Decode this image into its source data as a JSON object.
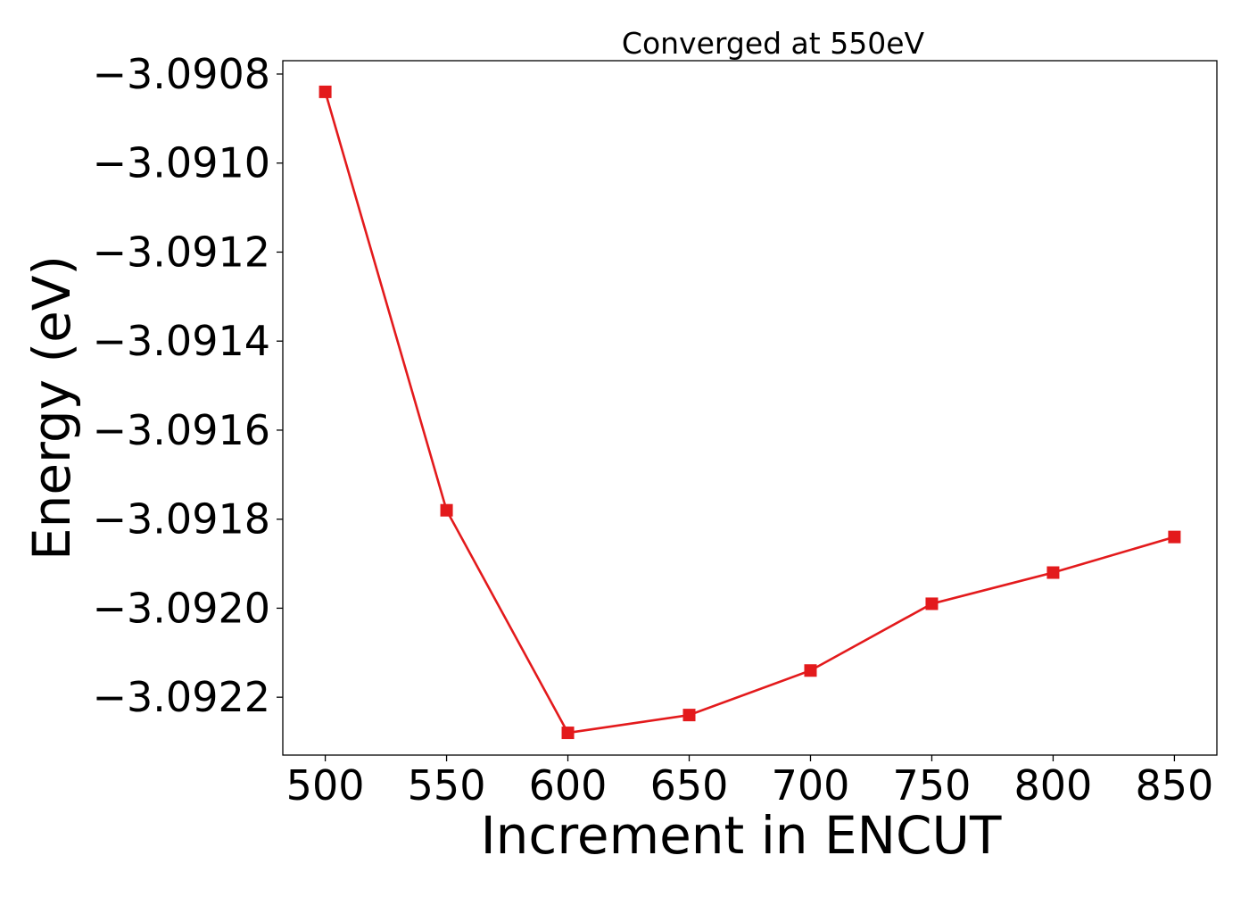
{
  "chart_data": {
    "type": "line",
    "title": "Converged at 550eV",
    "xlabel": "Increment in ENCUT",
    "ylabel": "Energy (eV)",
    "x": [
      500,
      550,
      600,
      650,
      700,
      750,
      800,
      850
    ],
    "series": [
      {
        "values": [
          -3.09084,
          -3.09178,
          -3.09228,
          -3.09224,
          -3.09214,
          -3.09199,
          -3.09192,
          -3.09184
        ],
        "color": "#e31a1c",
        "marker": "square"
      }
    ],
    "xticks": [
      500,
      550,
      600,
      650,
      700,
      750,
      800,
      850
    ],
    "xtick_labels": [
      "500",
      "550",
      "600",
      "650",
      "700",
      "750",
      "800",
      "850"
    ],
    "yticks": [
      -3.0908,
      -3.091,
      -3.0912,
      -3.0914,
      -3.0916,
      -3.0918,
      -3.092,
      -3.0922
    ],
    "ytick_labels": [
      "−3.0908",
      "−3.0910",
      "−3.0912",
      "−3.0914",
      "−3.0916",
      "−3.0918",
      "−3.0920",
      "−3.0922"
    ],
    "xlim": [
      482.5,
      867.5
    ],
    "ylim": [
      -3.09233,
      -3.09077
    ],
    "grid": false,
    "legend": "none"
  }
}
